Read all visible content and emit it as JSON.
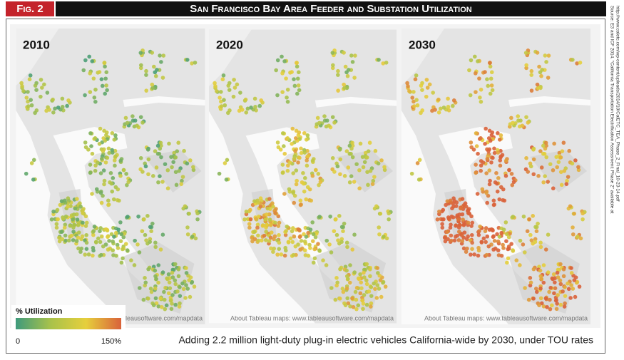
{
  "header": {
    "figure_label": "Fig. 2",
    "title": "San Francisco Bay Area Feeder and Substation Utilization"
  },
  "source": [
    "Source: E3 and ICF 2014. “California Transportation Electrification Assessment: Phase 2” available at",
    "http://www.caletc.com/wp-content/uploads/2014/10/CalETC_TEA_Phase_2_Final_10-23-14.pdf"
  ],
  "panels": [
    {
      "label": "2010"
    },
    {
      "label": "2020"
    },
    {
      "label": "2030"
    }
  ],
  "map_credit": "About Tableau maps: www.tableausoftware.com/mapdata",
  "legend": {
    "title": "% Utilization",
    "min_label": "0",
    "max_label": "150%",
    "colors": [
      "#3f9a7c",
      "#a9c24a",
      "#e6cf3c",
      "#d9623a"
    ]
  },
  "caption": "Adding 2.2 million light-duty plug-in electric vehicles California-wide by 2030, under TOU rates"
}
